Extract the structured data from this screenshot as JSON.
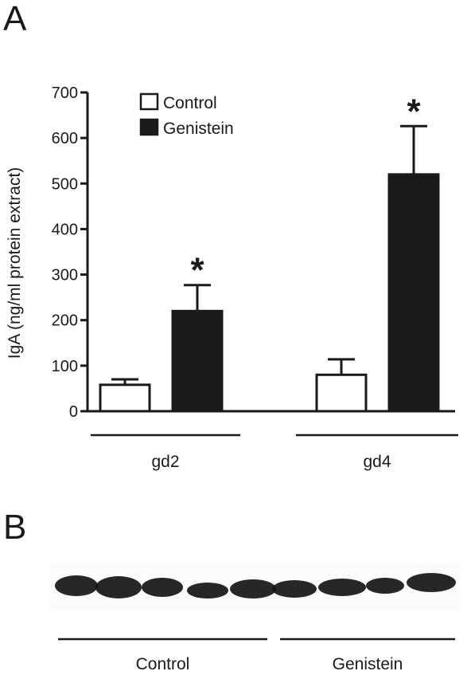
{
  "panel_a_label": "A",
  "panel_b_label": "B",
  "chart_data": {
    "type": "bar",
    "title": "",
    "ylabel": "IgA (ng/ml protein extract)",
    "xlabel": "",
    "ylim": [
      0,
      700
    ],
    "yticks": [
      0,
      100,
      200,
      300,
      400,
      500,
      600,
      700
    ],
    "categories": [
      "gd2",
      "gd4"
    ],
    "series": [
      {
        "name": "Control",
        "color": "#ffffff",
        "values": [
          58,
          80
        ],
        "errors": [
          12,
          34
        ]
      },
      {
        "name": "Genistein",
        "color": "#1a1a1a",
        "values": [
          220,
          520
        ],
        "errors": [
          57,
          106
        ]
      }
    ],
    "significance": [
      {
        "category": "gd2",
        "series": "Genistein",
        "label": "*"
      },
      {
        "category": "gd4",
        "series": "Genistein",
        "label": "*"
      }
    ],
    "legend_position": "top-left",
    "grid": false
  },
  "blot": {
    "groups": [
      {
        "label": "Control",
        "lanes": 5
      },
      {
        "label": "Genistein",
        "lanes": 4
      }
    ]
  }
}
